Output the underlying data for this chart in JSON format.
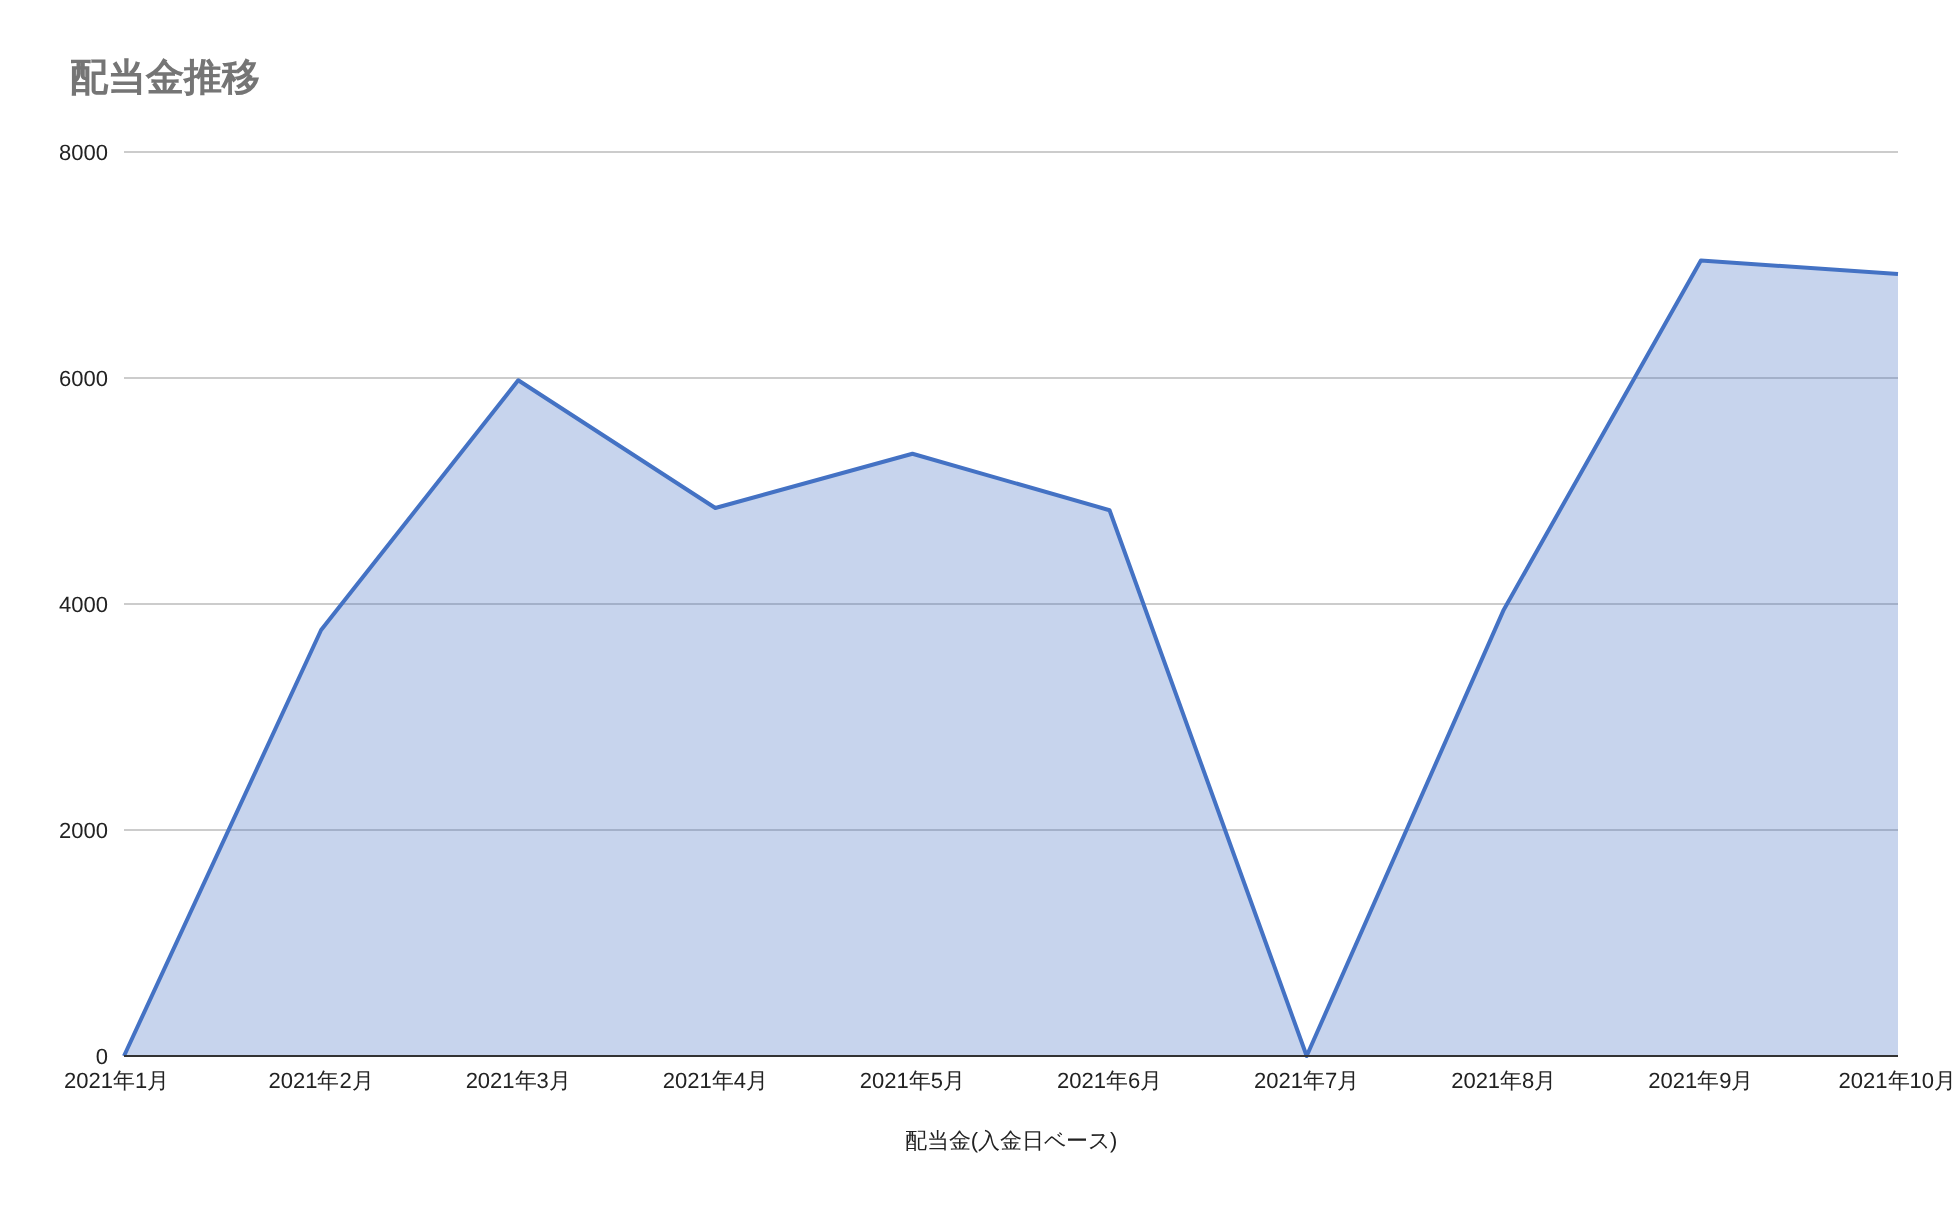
{
  "chart_data": {
    "type": "area",
    "title": "配当金推移",
    "xlabel": "配当金(入金日ベース)",
    "categories": [
      "2021年1月",
      "2021年2月",
      "2021年3月",
      "2021年4月",
      "2021年5月",
      "2021年6月",
      "2021年7月",
      "2021年8月",
      "2021年9月",
      "2021年10月"
    ],
    "series": [
      {
        "color": "#4472c4",
        "values": [
          0,
          3770,
          5980,
          4850,
          5330,
          4830,
          0,
          3950,
          7040,
          6920
        ]
      }
    ],
    "ylim": [
      0,
      8000
    ],
    "yticks": [
      0,
      2000,
      4000,
      6000,
      8000
    ],
    "grid": "y"
  }
}
